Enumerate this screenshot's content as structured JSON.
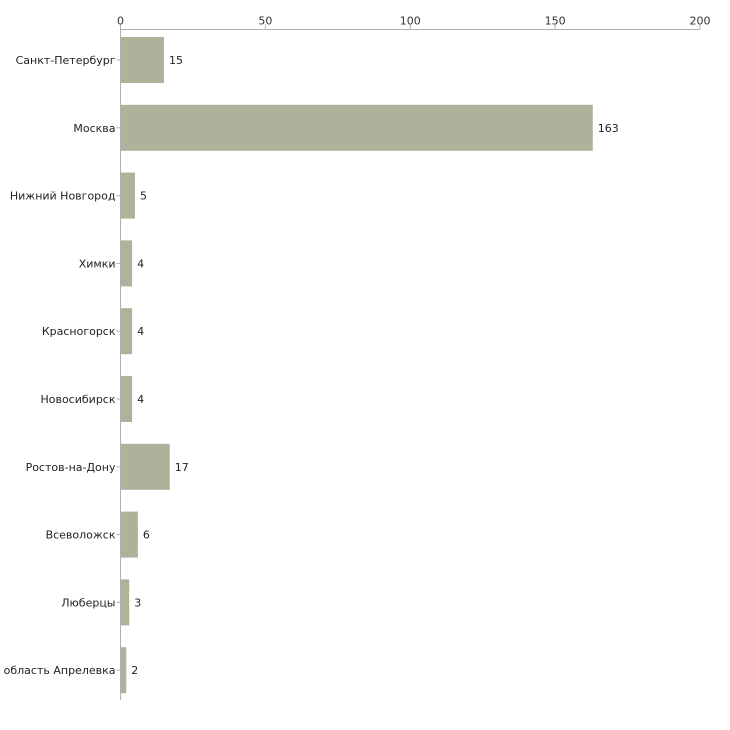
{
  "chart_data": {
    "type": "bar",
    "orientation": "horizontal",
    "title": "",
    "xlabel": "",
    "ylabel": "",
    "xlim": [
      0,
      200
    ],
    "x_ticks": [
      0,
      50,
      100,
      150,
      200
    ],
    "x_tick_labels": [
      "0",
      "50",
      "100",
      "150",
      "200"
    ],
    "x_axis_position": "top",
    "grid": false,
    "legend": "none",
    "bar_color": "#adb29a",
    "categories": [
      "Санкт-Петербург",
      "Москва",
      "Нижний Новгород",
      "Химки",
      "Красногорск",
      "Новосибирск",
      "Ростов-на-Дону",
      "Всеволожск",
      "Люберцы",
      "Московская область Апрелевка"
    ],
    "values": [
      15,
      163,
      5,
      4,
      4,
      4,
      17,
      6,
      3,
      2
    ],
    "value_labels": [
      "15",
      "163",
      "5",
      "4",
      "4",
      "4",
      "17",
      "6",
      "3",
      "2"
    ]
  }
}
